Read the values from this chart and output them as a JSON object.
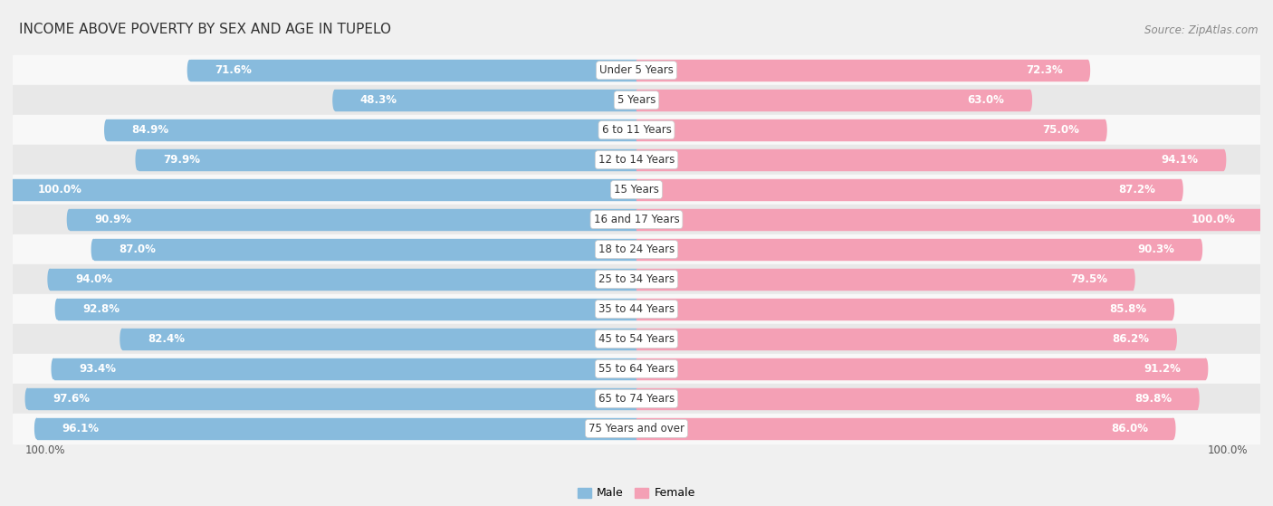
{
  "title": "INCOME ABOVE POVERTY BY SEX AND AGE IN TUPELO",
  "source": "Source: ZipAtlas.com",
  "categories": [
    "Under 5 Years",
    "5 Years",
    "6 to 11 Years",
    "12 to 14 Years",
    "15 Years",
    "16 and 17 Years",
    "18 to 24 Years",
    "25 to 34 Years",
    "35 to 44 Years",
    "45 to 54 Years",
    "55 to 64 Years",
    "65 to 74 Years",
    "75 Years and over"
  ],
  "male_values": [
    71.6,
    48.3,
    84.9,
    79.9,
    100.0,
    90.9,
    87.0,
    94.0,
    92.8,
    82.4,
    93.4,
    97.6,
    96.1
  ],
  "female_values": [
    72.3,
    63.0,
    75.0,
    94.1,
    87.2,
    100.0,
    90.3,
    79.5,
    85.8,
    86.2,
    91.2,
    89.8,
    86.0
  ],
  "male_color": "#88bbdd",
  "female_color": "#f4a0b5",
  "male_label": "Male",
  "female_label": "Female",
  "bg_color": "#f0f0f0",
  "row_bg_light": "#f8f8f8",
  "row_bg_dark": "#e8e8e8",
  "label_fontsize": 8.5,
  "title_fontsize": 11,
  "source_fontsize": 8.5
}
